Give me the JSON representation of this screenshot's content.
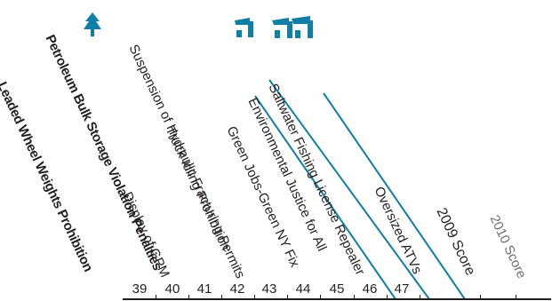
{
  "columns": [
    {
      "key": "leaded-wheel-weights",
      "label": "Leaded Wheel Weights Prohibition"
    },
    {
      "key": "petroleum-bulk-storage",
      "label": "Petroleum Bulk Storage Violation Penalties"
    },
    {
      "key": "display-of-gpm",
      "label": "Display of GPM"
    },
    {
      "key": "truck-idling",
      "label": "Truck Idling Prohibition"
    },
    {
      "key": "suspension-hydraulic-fracturing",
      "label": "Suspension of Hydraulic Fracturing Permits"
    },
    {
      "key": "green-jobs",
      "label": "Green Jobs-Green NY Fix"
    },
    {
      "key": "environmental-justice",
      "label": "Environmental Justice for All"
    },
    {
      "key": "saltwater-fishing",
      "label": "Saltwater Fishing License Repealer"
    },
    {
      "key": "oversized-atvs",
      "label": "Oversized ATVs"
    },
    {
      "key": "score-2009",
      "label": "2009 Score"
    },
    {
      "key": "score-2010",
      "label": "2010 Score"
    }
  ],
  "column_numbers": [
    "39",
    "40",
    "41",
    "42",
    "43",
    "44",
    "45",
    "46",
    "47"
  ],
  "icons": [
    "tree-icon",
    "tree-pair-icon",
    "tree-pair-icon"
  ],
  "colors": {
    "text": "#231f20",
    "accent": "#0f7fa6",
    "muted": "#6d6e71",
    "icon": "#0f7fa6"
  }
}
